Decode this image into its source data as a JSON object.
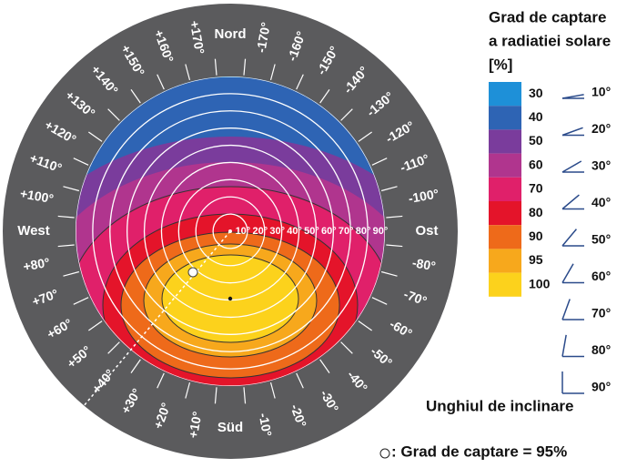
{
  "legend": {
    "title_lines": [
      "Grad de captare",
      "a radiatiei solare",
      "[%]"
    ],
    "items": [
      {
        "value": 30,
        "color": "#1e90d8"
      },
      {
        "value": 40,
        "color": "#2e64b4"
      },
      {
        "value": 50,
        "color": "#7a3c9c"
      },
      {
        "value": 60,
        "color": "#b0358e"
      },
      {
        "value": 70,
        "color": "#e0206a"
      },
      {
        "value": 80,
        "color": "#e4142a"
      },
      {
        "value": 90,
        "color": "#ee6a1a"
      },
      {
        "value": 95,
        "color": "#f7a81c"
      },
      {
        "value": 100,
        "color": "#fcd21c"
      }
    ]
  },
  "directions": [
    {
      "value": 180,
      "label": "Nord"
    },
    {
      "value": 0,
      "label": "Süd"
    },
    {
      "value": 90,
      "label": "West"
    },
    {
      "value": -90,
      "label": "Ost"
    }
  ],
  "azimuth_labels": [
    {
      "value": 170,
      "label": "+170°"
    },
    {
      "value": 160,
      "label": "+160°"
    },
    {
      "value": 150,
      "label": "+150°"
    },
    {
      "value": 140,
      "label": "+140°"
    },
    {
      "value": 130,
      "label": "+130°"
    },
    {
      "value": 120,
      "label": "+120°"
    },
    {
      "value": 110,
      "label": "+110°"
    },
    {
      "value": 100,
      "label": "+100°"
    },
    {
      "value": 80,
      "label": "+80°"
    },
    {
      "value": 70,
      "label": "+70°"
    },
    {
      "value": 60,
      "label": "+60°"
    },
    {
      "value": 50,
      "label": "+50°"
    },
    {
      "value": 40,
      "label": "+40°"
    },
    {
      "value": 30,
      "label": "+30°"
    },
    {
      "value": 20,
      "label": "+20°"
    },
    {
      "value": 10,
      "label": "+10°"
    },
    {
      "value": -170,
      "label": "-170°"
    },
    {
      "value": -160,
      "label": "-160°"
    },
    {
      "value": -150,
      "label": "-150°"
    },
    {
      "value": -140,
      "label": "-140°"
    },
    {
      "value": -130,
      "label": "-130°"
    },
    {
      "value": -120,
      "label": "-120°"
    },
    {
      "value": -110,
      "label": "-110°"
    },
    {
      "value": -100,
      "label": "-100°"
    },
    {
      "value": -80,
      "label": "-80°"
    },
    {
      "value": -70,
      "label": "-70°"
    },
    {
      "value": -60,
      "label": "-60°"
    },
    {
      "value": -50,
      "label": "-50°"
    },
    {
      "value": -40,
      "label": "-40°"
    },
    {
      "value": -30,
      "label": "-30°"
    },
    {
      "value": -20,
      "label": "-20°"
    },
    {
      "value": -10,
      "label": "-10°"
    }
  ],
  "radius_labels": [
    {
      "value": 10,
      "label": "10°"
    },
    {
      "value": 20,
      "label": "20°"
    },
    {
      "value": 30,
      "label": "30°"
    },
    {
      "value": 40,
      "label": "40°"
    },
    {
      "value": 50,
      "label": "50°"
    },
    {
      "value": 60,
      "label": "60°"
    },
    {
      "value": 70,
      "label": "70°"
    },
    {
      "value": 80,
      "label": "80°"
    },
    {
      "value": 90,
      "label": "90°"
    }
  ],
  "tilt_angles": [
    {
      "value": 10,
      "label": "10°"
    },
    {
      "value": 20,
      "label": "20°"
    },
    {
      "value": 30,
      "label": "30°"
    },
    {
      "value": 40,
      "label": "40°"
    },
    {
      "value": 50,
      "label": "50°"
    },
    {
      "value": 60,
      "label": "60°"
    },
    {
      "value": 70,
      "label": "70°"
    },
    {
      "value": 80,
      "label": "80°"
    },
    {
      "value": 90,
      "label": "90°"
    }
  ],
  "tilt_title": "Unghiul de inclinare",
  "marker_note": ": Grad de captare = 95%"
}
